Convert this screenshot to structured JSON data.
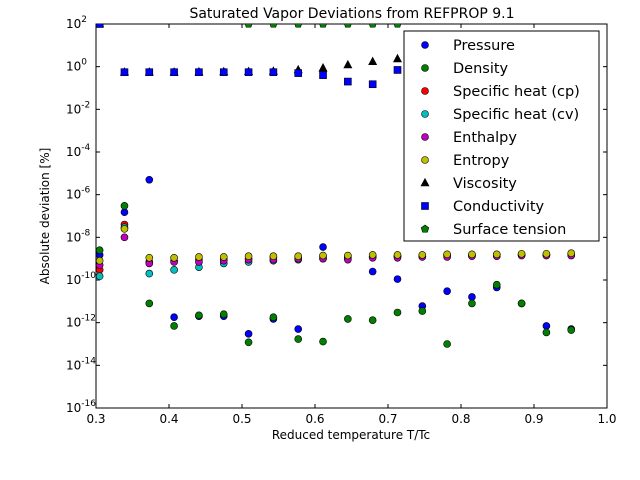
{
  "chart_data": {
    "type": "scatter",
    "title": "Saturated Vapor Deviations from REFPROP 9.1",
    "xlabel": "Reduced temperature T/Tc",
    "ylabel": "Absolute deviation [%]",
    "xlim": [
      0.3,
      1.0
    ],
    "ylim_log10": [
      -16,
      2
    ],
    "yscale": "log",
    "x_ticks": [
      "0.3",
      "0.4",
      "0.5",
      "0.6",
      "0.7",
      "0.8",
      "0.9",
      "1.0"
    ],
    "y_ticks": [
      {
        "base": "10",
        "exp": "-16"
      },
      {
        "base": "10",
        "exp": "-14"
      },
      {
        "base": "10",
        "exp": "-12"
      },
      {
        "base": "10",
        "exp": "-10"
      },
      {
        "base": "10",
        "exp": "-8"
      },
      {
        "base": "10",
        "exp": "-6"
      },
      {
        "base": "10",
        "exp": "-4"
      },
      {
        "base": "10",
        "exp": "-2"
      },
      {
        "base": "10",
        "exp": "0"
      },
      {
        "base": "10",
        "exp": "2"
      }
    ],
    "grid": false,
    "legend_position": "top-right",
    "series": [
      {
        "name": "Pressure",
        "marker": "circle",
        "color": "#0000ff",
        "x": [
          0.305,
          0.339,
          0.373,
          0.407,
          0.441,
          0.475,
          0.509,
          0.543,
          0.577,
          0.611,
          0.645,
          0.679,
          0.713,
          0.747,
          0.781,
          0.815,
          0.849,
          0.883,
          0.917,
          0.951
        ],
        "y": [
          1.5e-09,
          1.5e-07,
          5e-06,
          1.8e-12,
          2e-12,
          2e-12,
          3e-13,
          1.5e-12,
          5e-13,
          3.5e-09,
          1e-09,
          2.5e-10,
          1.1e-10,
          6e-12,
          3e-11,
          1.6e-11,
          4.5e-11,
          8e-12,
          7e-13,
          5e-13
        ]
      },
      {
        "name": "Density",
        "marker": "circle",
        "color": "#008000",
        "x": [
          0.305,
          0.339,
          0.373,
          0.407,
          0.441,
          0.475,
          0.509,
          0.543,
          0.577,
          0.611,
          0.645,
          0.679,
          0.713,
          0.747,
          0.781,
          0.815,
          0.849,
          0.883,
          0.917,
          0.951
        ],
        "y": [
          2.5e-09,
          3e-07,
          8e-12,
          7e-13,
          2.2e-12,
          2.5e-12,
          1.2e-13,
          1.8e-12,
          1.7e-13,
          1.3e-13,
          1.5e-12,
          1.3e-12,
          3e-12,
          3.5e-12,
          1e-13,
          8e-12,
          6e-11,
          8e-12,
          3.5e-13,
          4.5e-13
        ]
      },
      {
        "name": "Specific heat (cp)",
        "marker": "circle",
        "color": "#ff0000",
        "x": [
          0.305,
          0.339,
          0.373,
          0.407,
          0.441,
          0.475,
          0.509,
          0.543,
          0.577,
          0.611,
          0.645,
          0.679,
          0.713,
          0.747,
          0.781,
          0.815,
          0.849,
          0.883,
          0.917,
          0.951
        ],
        "y": [
          3e-10,
          4e-08,
          7e-10,
          8e-10,
          9e-10,
          1e-09,
          1e-09,
          1.1e-09,
          1.1e-09,
          1.2e-09,
          1.2e-09,
          1.3e-09,
          1.3e-09,
          1.3e-09,
          1.4e-09,
          1.4e-09,
          1.4e-09,
          1.5e-09,
          1.5e-09,
          1.5e-09
        ]
      },
      {
        "name": "Specific heat (cv)",
        "marker": "circle",
        "color": "#00bfbf",
        "x": [
          0.305,
          0.339,
          0.373,
          0.407,
          0.441,
          0.475,
          0.509,
          0.543,
          0.577,
          0.611,
          0.645,
          0.679,
          0.713,
          0.747,
          0.781,
          0.815,
          0.849,
          0.883,
          0.917,
          0.951
        ],
        "y": [
          1.5e-10,
          3e-08,
          2e-10,
          3e-10,
          4e-10,
          6e-10,
          7e-10,
          8e-10,
          9e-10,
          1e-09,
          1.1e-09,
          1.2e-09,
          1.3e-09,
          1.3e-09,
          1.4e-09,
          1.4e-09,
          1.5e-09,
          1.5e-09,
          1.5e-09,
          1.6e-09
        ]
      },
      {
        "name": "Enthalpy",
        "marker": "circle",
        "color": "#bf00bf",
        "x": [
          0.305,
          0.339,
          0.373,
          0.407,
          0.441,
          0.475,
          0.509,
          0.543,
          0.577,
          0.611,
          0.645,
          0.679,
          0.713,
          0.747,
          0.781,
          0.815,
          0.849,
          0.883,
          0.917,
          0.951
        ],
        "y": [
          5e-10,
          1e-08,
          6e-10,
          7e-10,
          7e-10,
          8e-10,
          9e-10,
          9e-10,
          1e-09,
          1e-09,
          9e-10,
          1.1e-09,
          1.1e-09,
          1.2e-09,
          1.2e-09,
          1.3e-09,
          1.3e-09,
          1.4e-09,
          1.4e-09,
          1.4e-09
        ]
      },
      {
        "name": "Entropy",
        "marker": "circle",
        "color": "#bfbf00",
        "x": [
          0.305,
          0.339,
          0.373,
          0.407,
          0.441,
          0.475,
          0.509,
          0.543,
          0.577,
          0.611,
          0.645,
          0.679,
          0.713,
          0.747,
          0.781,
          0.815,
          0.849,
          0.883,
          0.917,
          0.951
        ],
        "y": [
          8e-10,
          2.5e-08,
          1.1e-09,
          1.1e-09,
          1.2e-09,
          1.2e-09,
          1.3e-09,
          1.3e-09,
          1.3e-09,
          1.4e-09,
          1.4e-09,
          1.5e-09,
          1.5e-09,
          1.5e-09,
          1.6e-09,
          1.6e-09,
          1.6e-09,
          1.7e-09,
          1.7e-09,
          1.8e-09
        ]
      },
      {
        "name": "Viscosity",
        "marker": "triangle",
        "color": "#000000",
        "x": [
          0.305,
          0.339,
          0.373,
          0.407,
          0.441,
          0.475,
          0.509,
          0.543,
          0.577,
          0.611,
          0.645,
          0.679,
          0.713
        ],
        "y": [
          100,
          0.55,
          0.55,
          0.55,
          0.56,
          0.57,
          0.58,
          0.6,
          0.7,
          0.85,
          1.2,
          1.7,
          2.3
        ]
      },
      {
        "name": "Conductivity",
        "marker": "square",
        "color": "#0000ff",
        "x": [
          0.305,
          0.339,
          0.373,
          0.407,
          0.441,
          0.475,
          0.509,
          0.543,
          0.577,
          0.611,
          0.645,
          0.679,
          0.713
        ],
        "y": [
          100,
          0.55,
          0.55,
          0.55,
          0.55,
          0.55,
          0.55,
          0.55,
          0.5,
          0.4,
          0.2,
          0.15,
          0.7
        ]
      },
      {
        "name": "Surface tension",
        "marker": "pentagon",
        "color": "#008000",
        "x": [
          0.509,
          0.543,
          0.577,
          0.611,
          0.645,
          0.679,
          0.713
        ],
        "y": [
          100,
          100,
          100,
          100,
          100,
          100,
          100
        ]
      }
    ]
  }
}
